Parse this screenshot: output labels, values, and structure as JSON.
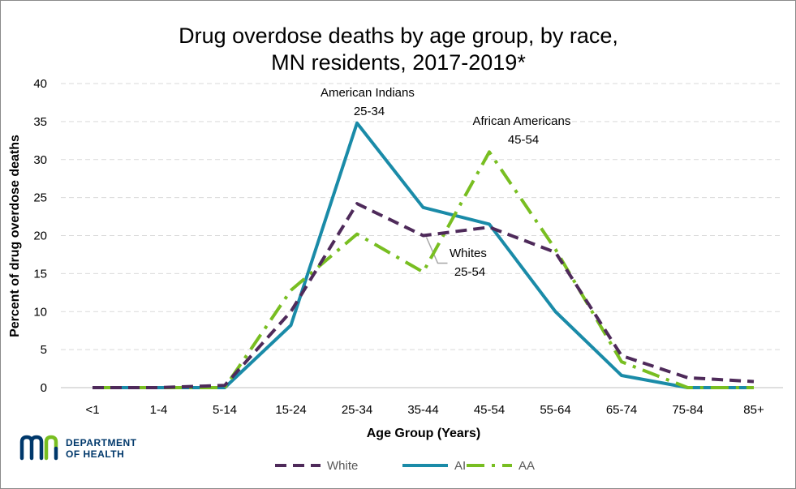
{
  "chart_data": {
    "type": "line",
    "title": [
      "Drug overdose deaths by age group, by race,",
      "MN residents, 2017-2019*"
    ],
    "xlabel": "Age Group (Years)",
    "ylabel": "Percent of drug overdose deaths",
    "ylim": [
      0,
      40
    ],
    "yticks": [
      0,
      5,
      10,
      15,
      20,
      25,
      30,
      35,
      40
    ],
    "grid": "horizontal dashed",
    "legend_position": "bottom",
    "categories": [
      "<1",
      "1-4",
      "5-14",
      "15-24",
      "25-34",
      "35-44",
      "45-54",
      "55-64",
      "65-74",
      "75-84",
      "85+"
    ],
    "series": [
      {
        "name": "White",
        "color": "#4e2a5a",
        "dash": "dashed",
        "values": [
          0,
          0,
          0.3,
          10,
          24.2,
          20,
          21.1,
          17.8,
          4.2,
          1.3,
          0.8
        ]
      },
      {
        "name": "AI",
        "color": "#1a8ba8",
        "dash": "solid",
        "values": [
          0,
          0,
          0,
          8.2,
          34.8,
          23.7,
          21.5,
          10,
          1.6,
          0,
          0
        ]
      },
      {
        "name": "AA",
        "color": "#78be21",
        "dash": "dash-dot",
        "values": [
          0,
          0,
          0,
          12.8,
          20.2,
          15.2,
          31,
          18.2,
          3.4,
          0,
          0
        ]
      }
    ],
    "annotations": [
      {
        "lines": [
          "American Indians",
          "25-34"
        ]
      },
      {
        "lines": [
          "African Americans",
          "45-54"
        ]
      },
      {
        "lines": [
          "Whites",
          "25-54"
        ]
      }
    ]
  },
  "logo": {
    "name": "mn-department-of-health-logo",
    "text": [
      "DEPARTMENT",
      "OF HEALTH"
    ],
    "colors": {
      "navy": "#00386b",
      "green": "#78be21"
    }
  }
}
